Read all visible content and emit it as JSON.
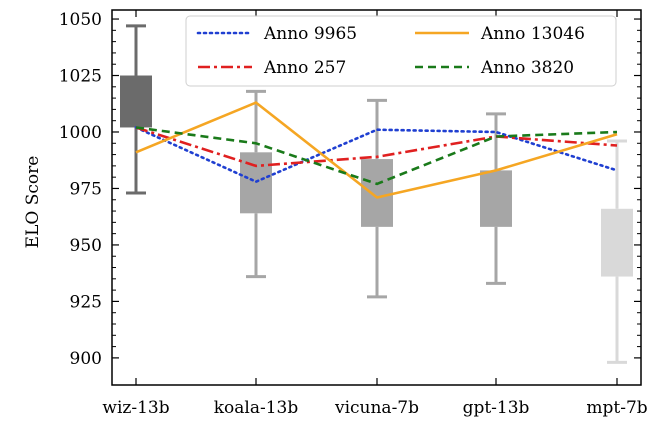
{
  "chart_data": {
    "type": "box+line",
    "title": "",
    "xlabel": "",
    "ylabel": "ELO Score",
    "ylim": [
      888,
      1054
    ],
    "yticks": [
      900,
      925,
      950,
      975,
      1000,
      1025,
      1050
    ],
    "categories": [
      "wiz-13b",
      "koala-13b",
      "vicuna-7b",
      "gpt-13b",
      "mpt-7b"
    ],
    "boxes": [
      {
        "category": "wiz-13b",
        "whisker_low": 973,
        "q1": 1002,
        "q3": 1025,
        "whisker_high": 1047,
        "color": "#6b6b6b"
      },
      {
        "category": "koala-13b",
        "whisker_low": 936,
        "q1": 964,
        "q3": 991,
        "whisker_high": 1018,
        "color": "#a6a6a6"
      },
      {
        "category": "vicuna-7b",
        "whisker_low": 927,
        "q1": 958,
        "q3": 988,
        "whisker_high": 1014,
        "color": "#a6a6a6"
      },
      {
        "category": "gpt-13b",
        "whisker_low": 933,
        "q1": 958,
        "q3": 983,
        "whisker_high": 1008,
        "color": "#a6a6a6"
      },
      {
        "category": "mpt-7b",
        "whisker_low": 898,
        "q1": 936,
        "q3": 966,
        "whisker_high": 996,
        "color": "#d9d9d9"
      }
    ],
    "series": [
      {
        "name": "Anno 9965",
        "values": [
          1002,
          978,
          1001,
          1000,
          983
        ],
        "color": "#1f3fd1",
        "style": "dotted"
      },
      {
        "name": "Anno 257",
        "values": [
          1002,
          985,
          989,
          998,
          994
        ],
        "color": "#e02020",
        "style": "dashdot"
      },
      {
        "name": "Anno 13046",
        "values": [
          991,
          1013,
          971,
          983,
          999
        ],
        "color": "#f5a623",
        "style": "solid"
      },
      {
        "name": "Anno 3820",
        "values": [
          1002,
          995,
          977,
          998,
          1000
        ],
        "color": "#1a7a1a",
        "style": "dashed"
      }
    ],
    "legend_placement": "top-right",
    "grid": false
  }
}
